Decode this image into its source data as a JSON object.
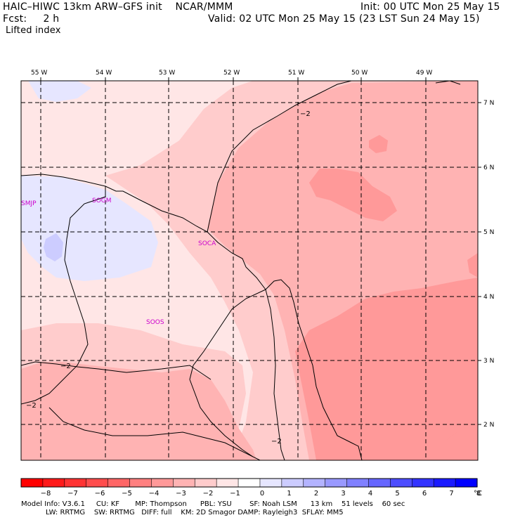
{
  "header": {
    "title_left": "HAIC–HIWC 13km ARW–GFS init    NCAR/MMM",
    "fcst": "Fcst:     2 h",
    "field": "Lifted index",
    "init": "Init: 00 UTC Mon 25 May 15",
    "valid": "Valid: 02 UTC Mon 25 May 15 (23 LST Sun 24 May 15)"
  },
  "map": {
    "lon_labels": [
      "55 W",
      "54 W",
      "53 W",
      "52 W",
      "51 W",
      "50 W",
      "49 W"
    ],
    "lat_labels": [
      "7 N",
      "6 N",
      "5 N",
      "4 N",
      "3 N",
      "2 N"
    ],
    "stations": [
      "SMJP",
      "SOGM",
      "SOCA",
      "SOOS"
    ],
    "contour_labels": [
      "−2",
      "−2",
      "−2",
      "−2"
    ]
  },
  "scale": {
    "labels": [
      "−8",
      "−7",
      "−6",
      "−5",
      "−4",
      "−3",
      "−2",
      "−1",
      "0",
      "1",
      "2",
      "3",
      "4",
      "5",
      "6",
      "7",
      "8"
    ],
    "unit": "°C",
    "colors": [
      "#ff0000",
      "#ff1a1a",
      "#ff3333",
      "#ff4d4d",
      "#ff6666",
      "#ff8080",
      "#ff9999",
      "#ffb3b3",
      "#ffcccc",
      "#ffe6e6",
      "#ffffff",
      "#e6e6ff",
      "#ccccff",
      "#b3b3ff",
      "#9999ff",
      "#8080ff",
      "#6666ff",
      "#4d4dff",
      "#3333ff",
      "#1a1aff",
      "#0000ff"
    ]
  },
  "footer": {
    "line1": "Model Info: V3.6.1     CU: KF       MP: Thompson      PBL: YSU        SF: Noah LSM      13 km    51 levels    60 sec",
    "line2": "           LW: RRTMG    SW: RRTMG   DIFF: full    KM: 2D Smagor DAMP: Rayleigh3  SFLAY: MM5"
  }
}
